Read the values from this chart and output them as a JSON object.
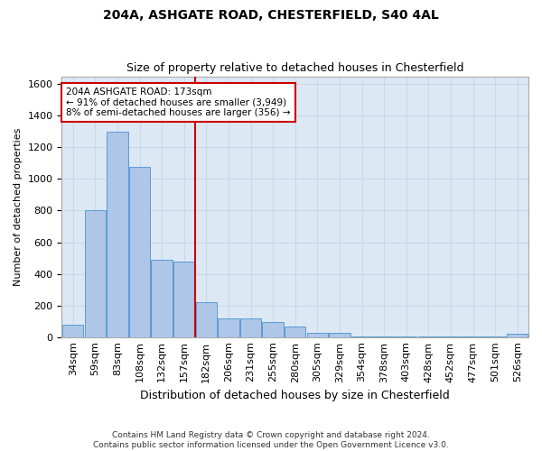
{
  "title1": "204A, ASHGATE ROAD, CHESTERFIELD, S40 4AL",
  "title2": "Size of property relative to detached houses in Chesterfield",
  "xlabel": "Distribution of detached houses by size in Chesterfield",
  "ylabel": "Number of detached properties",
  "footnote": "Contains HM Land Registry data © Crown copyright and database right 2024.\nContains public sector information licensed under the Open Government Licence v3.0.",
  "bin_labels": [
    "34sqm",
    "59sqm",
    "83sqm",
    "108sqm",
    "132sqm",
    "157sqm",
    "182sqm",
    "206sqm",
    "231sqm",
    "255sqm",
    "280sqm",
    "305sqm",
    "329sqm",
    "354sqm",
    "378sqm",
    "403sqm",
    "428sqm",
    "452sqm",
    "477sqm",
    "501sqm",
    "526sqm"
  ],
  "bar_values": [
    80,
    800,
    1300,
    1075,
    490,
    480,
    220,
    120,
    120,
    95,
    65,
    25,
    25,
    5,
    5,
    5,
    5,
    5,
    5,
    5,
    20
  ],
  "bar_color": "#aec6e8",
  "bar_edge_color": "#5b9bd5",
  "grid_color": "#c8d8ea",
  "background_color": "#dce9f5",
  "vline_color": "#cc0000",
  "vline_x": 6.0,
  "annotation_text": "204A ASHGATE ROAD: 173sqm\n← 91% of detached houses are smaller (3,949)\n8% of semi-detached houses are larger (356) →",
  "annotation_box_color": "#ffffff",
  "annotation_box_edge_color": "#cc0000",
  "ylim": [
    0,
    1650
  ],
  "yticks": [
    0,
    200,
    400,
    600,
    800,
    1000,
    1200,
    1400,
    1600
  ],
  "title1_fontsize": 10,
  "title2_fontsize": 9,
  "xlabel_fontsize": 9,
  "ylabel_fontsize": 8,
  "tick_fontsize": 8,
  "xtick_fontsize": 8,
  "annot_fontsize": 7.5
}
